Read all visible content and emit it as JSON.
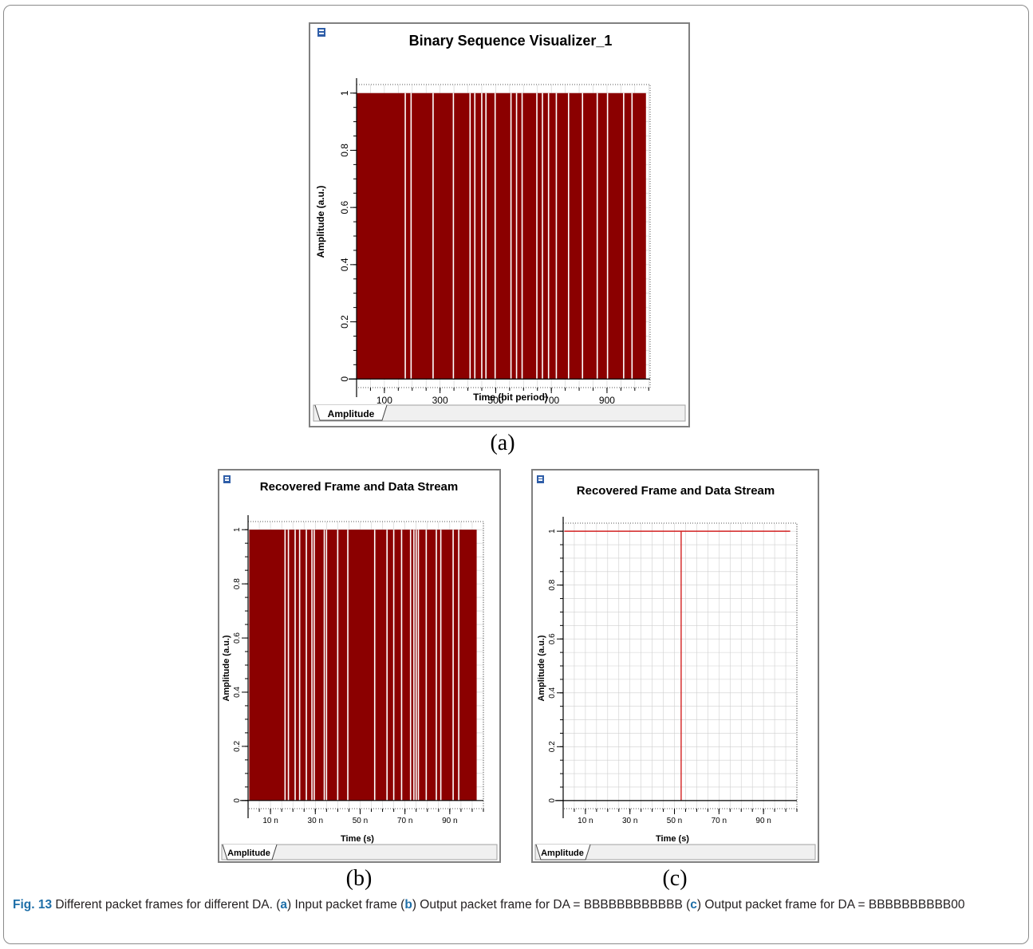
{
  "panel_labels": [
    "(a)",
    "(b)",
    "(c)"
  ],
  "caption": {
    "figure_number": "Fig. 13",
    "part1": " Different packet frames for different DA. (",
    "a": "a",
    "part2": ") Input packet frame (",
    "b": "b",
    "part3": ") Output packet frame for DA = BBBBBBBBBBBB (",
    "c": "c",
    "part4": ") Output packet frame for DA = BBBBBBBBBB00"
  },
  "colors": {
    "trace": "#8b0000",
    "trace_line": "#d22020",
    "grid": "#cfcfcf",
    "window_bg": "#ffffff",
    "window_border": "#808080",
    "tab_bg": "#f0f0f0"
  },
  "chart_data": [
    {
      "type": "bar",
      "title": "Binary Sequence Visualizer_1",
      "xlabel": "Time (bit period)",
      "ylabel": "Amplitude (a.u.)",
      "tab_label": "Amplitude",
      "xlim": [
        0,
        1055
      ],
      "ylim": [
        -0.03,
        1.03
      ],
      "x_ticks": [
        100,
        300,
        500,
        700,
        900
      ],
      "x_tick_labels": [
        "100",
        "300",
        "500",
        "700",
        "900"
      ],
      "y_ticks": [
        0,
        0.2,
        0.4,
        0.6,
        0.8,
        1
      ],
      "y_tick_labels": [
        "0",
        "0.2",
        "0.4",
        "0.6",
        "0.8",
        "1"
      ],
      "signal_start": 0,
      "signal_end": 1040,
      "high_level": 1,
      "gaps": [
        175,
        196,
        275,
        348,
        408,
        425,
        450,
        465,
        498,
        555,
        575,
        595,
        648,
        668,
        690,
        718,
        762,
        812,
        865,
        902,
        960,
        990
      ],
      "grid": true
    },
    {
      "type": "bar",
      "title": "Recovered Frame and Data Stream",
      "xlabel": "Time (s)",
      "ylabel": "Amplitude (a.u.)",
      "tab_label": "Amplitude",
      "xlim": [
        0,
        105
      ],
      "ylim": [
        -0.03,
        1.03
      ],
      "x_ticks": [
        10,
        30,
        50,
        70,
        90
      ],
      "x_tick_labels": [
        "10 n",
        "30 n",
        "50 n",
        "70 n",
        "90 n"
      ],
      "y_ticks": [
        0,
        0.2,
        0.4,
        0.6,
        0.8,
        1
      ],
      "y_tick_labels": [
        "0",
        "0.2",
        "0.4",
        "0.6",
        "0.8",
        "1"
      ],
      "signal_start": 0.5,
      "signal_end": 102,
      "high_level": 1,
      "gaps": [
        16.5,
        18.0,
        21.0,
        23.0,
        26.0,
        28.5,
        29.5,
        34.0,
        35.0,
        40.0,
        44.5,
        56.5,
        62.0,
        65.0,
        68.5,
        72.5,
        74.0,
        75.0,
        76.0,
        79.5,
        84.0,
        86.0,
        91.5,
        94.0
      ],
      "grid": true
    },
    {
      "type": "line",
      "title": "Recovered Frame and Data Stream",
      "xlabel": "Time (s)",
      "ylabel": "Amplitude (a.u.)",
      "tab_label": "Amplitude",
      "xlim": [
        0,
        105
      ],
      "ylim": [
        -0.03,
        1.03
      ],
      "x_ticks": [
        10,
        30,
        50,
        70,
        90
      ],
      "x_tick_labels": [
        "10 n",
        "30 n",
        "50 n",
        "70 n",
        "90 n"
      ],
      "y_ticks": [
        0,
        0.2,
        0.4,
        0.6,
        0.8,
        1
      ],
      "y_tick_labels": [
        "0",
        "0.2",
        "0.4",
        "0.6",
        "0.8",
        "1"
      ],
      "series": [
        {
          "name": "",
          "x": [
            0.5,
            53,
            53,
            53,
            53,
            102
          ],
          "y": [
            1,
            1,
            0,
            0,
            1,
            1
          ]
        }
      ],
      "grid": true
    }
  ]
}
